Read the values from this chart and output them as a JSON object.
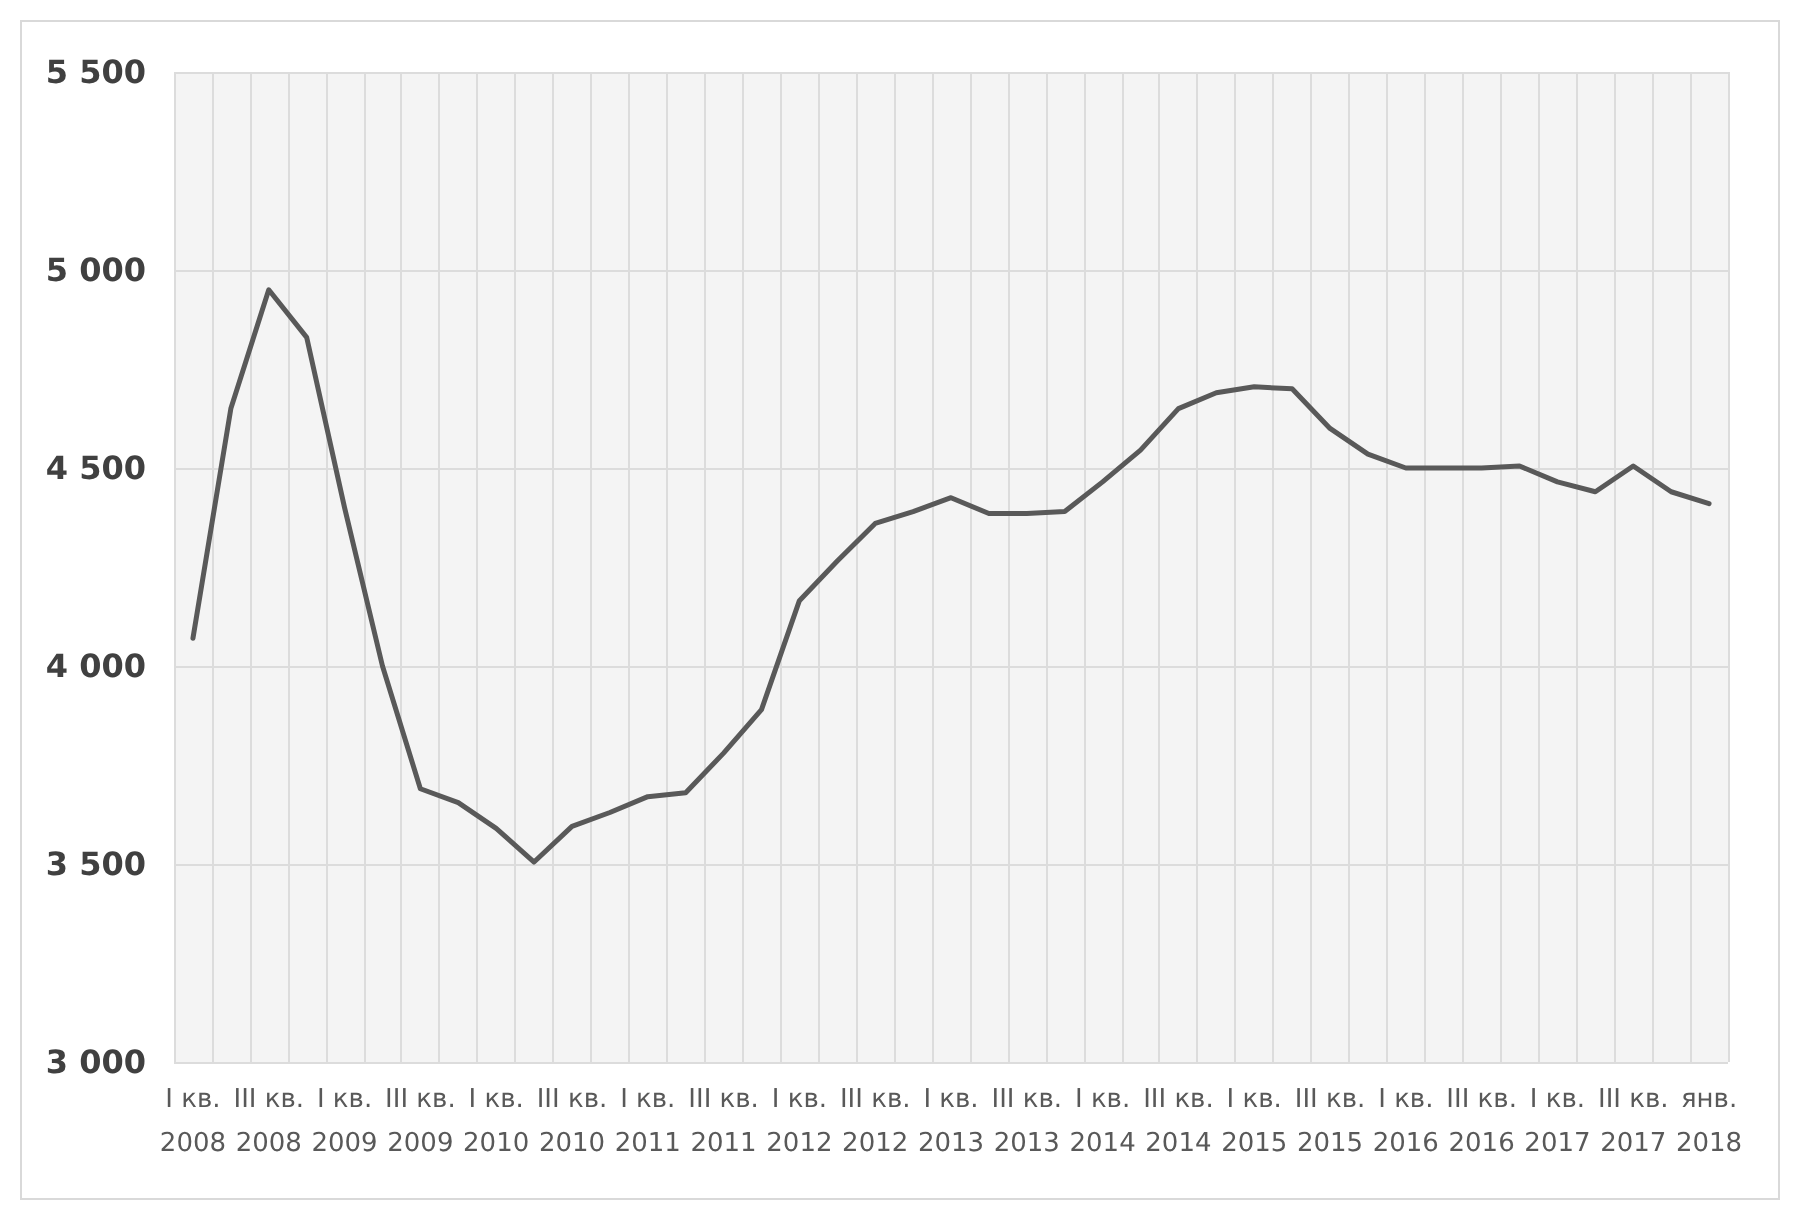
{
  "chart_data": {
    "type": "line",
    "categories": [
      "I кв.\n2008",
      null,
      "III кв.\n2008",
      null,
      "I кв.\n2009",
      null,
      "III кв.\n2009",
      null,
      "I кв.\n2010",
      null,
      "III кв.\n2010",
      null,
      "I кв.\n2011",
      null,
      "III кв.\n2011",
      null,
      "I кв.\n2012",
      null,
      "III кв.\n2012",
      null,
      "I кв.\n2013",
      null,
      "III кв.\n2013",
      null,
      "I кв.\n2014",
      null,
      "III кв.\n2014",
      null,
      "I кв.\n2015",
      null,
      "III кв.\n2015",
      null,
      "I кв.\n2016",
      null,
      "III кв.\n2016",
      null,
      "I кв.\n2017",
      null,
      "III кв.\n2017",
      null,
      "янв.\n2018"
    ],
    "series": [
      {
        "color": "#595959",
        "values": [
          4070,
          4650,
          4950,
          4830,
          4400,
          4000,
          3690,
          3655,
          3590,
          3505,
          3595,
          3630,
          3670,
          3680,
          3780,
          3890,
          4165,
          4265,
          4360,
          4390,
          4425,
          4385,
          4385,
          4390,
          4465,
          4545,
          4650,
          4690,
          4705,
          4700,
          4600,
          4535,
          4500,
          4500,
          4500,
          4505,
          4465,
          4440,
          4505,
          4440,
          4410
        ]
      }
    ],
    "ylim": [
      3000,
      5500
    ],
    "yticks": [
      {
        "value": 3000,
        "label": "3 000"
      },
      {
        "value": 3500,
        "label": "3 500"
      },
      {
        "value": 4000,
        "label": "4 000"
      },
      {
        "value": 4500,
        "label": "4 500"
      },
      {
        "value": 5000,
        "label": "5 000"
      },
      {
        "value": 5500,
        "label": "5 500"
      }
    ],
    "grid": true,
    "marker": "none",
    "line_style": "solid"
  }
}
